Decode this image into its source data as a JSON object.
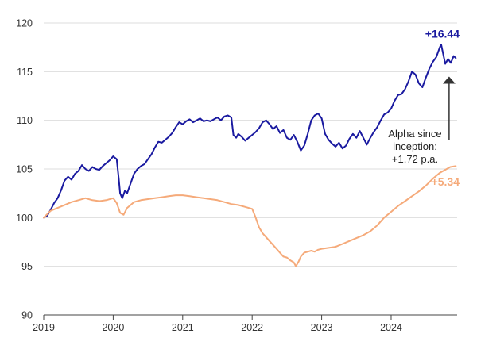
{
  "chart_data": {
    "type": "line",
    "title": "",
    "xlabel": "",
    "ylabel": "",
    "ylim": [
      90,
      120
    ],
    "xlim": [
      2019.0,
      2024.95
    ],
    "y_ticks": [
      90,
      95,
      100,
      105,
      110,
      115,
      120
    ],
    "x_ticks": [
      {
        "value": 2019,
        "label": "2019"
      },
      {
        "value": 2020,
        "label": "2020"
      },
      {
        "value": 2021,
        "label": "2021"
      },
      {
        "value": 2022,
        "label": "2022"
      },
      {
        "value": 2023,
        "label": "2023"
      },
      {
        "value": 2024,
        "label": "2024"
      }
    ],
    "grid": {
      "horizontal": true,
      "vertical": false
    },
    "series": [
      {
        "color": "#1a1aa0",
        "end_label": "+16.44",
        "points": [
          [
            2019.0,
            100.0
          ],
          [
            2019.05,
            100.2
          ],
          [
            2019.1,
            100.8
          ],
          [
            2019.15,
            101.5
          ],
          [
            2019.2,
            102.0
          ],
          [
            2019.25,
            102.8
          ],
          [
            2019.3,
            103.8
          ],
          [
            2019.35,
            104.2
          ],
          [
            2019.4,
            103.9
          ],
          [
            2019.45,
            104.5
          ],
          [
            2019.5,
            104.8
          ],
          [
            2019.55,
            105.4
          ],
          [
            2019.6,
            105.0
          ],
          [
            2019.65,
            104.8
          ],
          [
            2019.7,
            105.2
          ],
          [
            2019.75,
            105.0
          ],
          [
            2019.8,
            104.9
          ],
          [
            2019.85,
            105.3
          ],
          [
            2019.9,
            105.6
          ],
          [
            2019.95,
            105.9
          ],
          [
            2020.0,
            106.3
          ],
          [
            2020.05,
            106.0
          ],
          [
            2020.08,
            104.0
          ],
          [
            2020.1,
            102.5
          ],
          [
            2020.13,
            102.0
          ],
          [
            2020.17,
            102.8
          ],
          [
            2020.2,
            102.5
          ],
          [
            2020.25,
            103.5
          ],
          [
            2020.3,
            104.5
          ],
          [
            2020.35,
            105.0
          ],
          [
            2020.4,
            105.3
          ],
          [
            2020.45,
            105.5
          ],
          [
            2020.5,
            106.0
          ],
          [
            2020.55,
            106.5
          ],
          [
            2020.6,
            107.2
          ],
          [
            2020.65,
            107.8
          ],
          [
            2020.7,
            107.7
          ],
          [
            2020.75,
            108.0
          ],
          [
            2020.8,
            108.3
          ],
          [
            2020.85,
            108.7
          ],
          [
            2020.9,
            109.3
          ],
          [
            2020.95,
            109.8
          ],
          [
            2021.0,
            109.6
          ],
          [
            2021.05,
            109.9
          ],
          [
            2021.1,
            110.1
          ],
          [
            2021.15,
            109.8
          ],
          [
            2021.2,
            110.0
          ],
          [
            2021.25,
            110.2
          ],
          [
            2021.3,
            109.9
          ],
          [
            2021.35,
            110.0
          ],
          [
            2021.4,
            109.9
          ],
          [
            2021.45,
            110.1
          ],
          [
            2021.5,
            110.3
          ],
          [
            2021.55,
            110.0
          ],
          [
            2021.6,
            110.4
          ],
          [
            2021.65,
            110.5
          ],
          [
            2021.7,
            110.3
          ],
          [
            2021.73,
            108.5
          ],
          [
            2021.77,
            108.2
          ],
          [
            2021.8,
            108.6
          ],
          [
            2021.85,
            108.3
          ],
          [
            2021.9,
            107.9
          ],
          [
            2021.95,
            108.2
          ],
          [
            2022.0,
            108.5
          ],
          [
            2022.05,
            108.8
          ],
          [
            2022.1,
            109.2
          ],
          [
            2022.15,
            109.8
          ],
          [
            2022.2,
            110.0
          ],
          [
            2022.25,
            109.6
          ],
          [
            2022.3,
            109.1
          ],
          [
            2022.35,
            109.4
          ],
          [
            2022.4,
            108.7
          ],
          [
            2022.45,
            109.0
          ],
          [
            2022.5,
            108.2
          ],
          [
            2022.55,
            108.0
          ],
          [
            2022.6,
            108.5
          ],
          [
            2022.65,
            107.8
          ],
          [
            2022.7,
            106.9
          ],
          [
            2022.75,
            107.4
          ],
          [
            2022.8,
            108.6
          ],
          [
            2022.85,
            110.0
          ],
          [
            2022.9,
            110.5
          ],
          [
            2022.95,
            110.7
          ],
          [
            2023.0,
            110.2
          ],
          [
            2023.05,
            108.6
          ],
          [
            2023.1,
            108.0
          ],
          [
            2023.15,
            107.6
          ],
          [
            2023.2,
            107.3
          ],
          [
            2023.25,
            107.7
          ],
          [
            2023.3,
            107.1
          ],
          [
            2023.35,
            107.4
          ],
          [
            2023.4,
            108.1
          ],
          [
            2023.45,
            108.6
          ],
          [
            2023.5,
            108.2
          ],
          [
            2023.55,
            108.9
          ],
          [
            2023.6,
            108.2
          ],
          [
            2023.65,
            107.5
          ],
          [
            2023.7,
            108.2
          ],
          [
            2023.75,
            108.8
          ],
          [
            2023.8,
            109.3
          ],
          [
            2023.85,
            110.0
          ],
          [
            2023.9,
            110.6
          ],
          [
            2023.95,
            110.8
          ],
          [
            2024.0,
            111.2
          ],
          [
            2024.05,
            112.0
          ],
          [
            2024.1,
            112.6
          ],
          [
            2024.15,
            112.7
          ],
          [
            2024.2,
            113.2
          ],
          [
            2024.25,
            114.0
          ],
          [
            2024.3,
            115.0
          ],
          [
            2024.35,
            114.7
          ],
          [
            2024.4,
            113.8
          ],
          [
            2024.45,
            113.4
          ],
          [
            2024.5,
            114.4
          ],
          [
            2024.55,
            115.3
          ],
          [
            2024.6,
            116.0
          ],
          [
            2024.65,
            116.5
          ],
          [
            2024.7,
            117.5
          ],
          [
            2024.72,
            117.8
          ],
          [
            2024.75,
            116.8
          ],
          [
            2024.78,
            115.8
          ],
          [
            2024.82,
            116.3
          ],
          [
            2024.86,
            115.9
          ],
          [
            2024.9,
            116.6
          ],
          [
            2024.93,
            116.4
          ]
        ]
      },
      {
        "color": "#f5aa7a",
        "end_label": "+5.34",
        "points": [
          [
            2019.0,
            100.0
          ],
          [
            2019.1,
            100.7
          ],
          [
            2019.2,
            101.0
          ],
          [
            2019.3,
            101.3
          ],
          [
            2019.4,
            101.6
          ],
          [
            2019.5,
            101.8
          ],
          [
            2019.6,
            102.0
          ],
          [
            2019.7,
            101.8
          ],
          [
            2019.8,
            101.7
          ],
          [
            2019.9,
            101.8
          ],
          [
            2020.0,
            102.0
          ],
          [
            2020.05,
            101.5
          ],
          [
            2020.1,
            100.5
          ],
          [
            2020.15,
            100.3
          ],
          [
            2020.2,
            101.0
          ],
          [
            2020.3,
            101.6
          ],
          [
            2020.4,
            101.8
          ],
          [
            2020.5,
            101.9
          ],
          [
            2020.6,
            102.0
          ],
          [
            2020.7,
            102.1
          ],
          [
            2020.8,
            102.2
          ],
          [
            2020.9,
            102.3
          ],
          [
            2021.0,
            102.3
          ],
          [
            2021.1,
            102.2
          ],
          [
            2021.2,
            102.1
          ],
          [
            2021.3,
            102.0
          ],
          [
            2021.4,
            101.9
          ],
          [
            2021.5,
            101.8
          ],
          [
            2021.6,
            101.6
          ],
          [
            2021.7,
            101.4
          ],
          [
            2021.8,
            101.3
          ],
          [
            2021.9,
            101.1
          ],
          [
            2022.0,
            100.9
          ],
          [
            2022.05,
            100.0
          ],
          [
            2022.1,
            99.0
          ],
          [
            2022.15,
            98.4
          ],
          [
            2022.2,
            98.0
          ],
          [
            2022.25,
            97.6
          ],
          [
            2022.3,
            97.2
          ],
          [
            2022.35,
            96.8
          ],
          [
            2022.4,
            96.4
          ],
          [
            2022.45,
            96.0
          ],
          [
            2022.5,
            95.9
          ],
          [
            2022.55,
            95.6
          ],
          [
            2022.6,
            95.4
          ],
          [
            2022.63,
            95.0
          ],
          [
            2022.67,
            95.5
          ],
          [
            2022.7,
            96.0
          ],
          [
            2022.75,
            96.4
          ],
          [
            2022.8,
            96.5
          ],
          [
            2022.85,
            96.6
          ],
          [
            2022.9,
            96.5
          ],
          [
            2022.95,
            96.7
          ],
          [
            2023.0,
            96.8
          ],
          [
            2023.1,
            96.9
          ],
          [
            2023.2,
            97.0
          ],
          [
            2023.3,
            97.3
          ],
          [
            2023.4,
            97.6
          ],
          [
            2023.5,
            97.9
          ],
          [
            2023.6,
            98.2
          ],
          [
            2023.7,
            98.6
          ],
          [
            2023.8,
            99.2
          ],
          [
            2023.9,
            100.0
          ],
          [
            2024.0,
            100.6
          ],
          [
            2024.1,
            101.2
          ],
          [
            2024.2,
            101.7
          ],
          [
            2024.3,
            102.2
          ],
          [
            2024.4,
            102.7
          ],
          [
            2024.5,
            103.3
          ],
          [
            2024.6,
            104.0
          ],
          [
            2024.7,
            104.6
          ],
          [
            2024.8,
            105.0
          ],
          [
            2024.85,
            105.2
          ],
          [
            2024.93,
            105.3
          ]
        ]
      }
    ],
    "annotation": {
      "lines": [
        "Alpha since",
        "inception:",
        "+1.72 p.a."
      ],
      "arrow_from": 108.5,
      "arrow_to": 114.5,
      "arrow_x": 2024.8
    }
  }
}
